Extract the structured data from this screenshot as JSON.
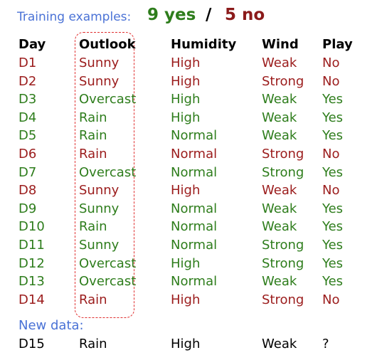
{
  "title": {
    "label": "Training examples:",
    "yes_count": "9 yes",
    "slash": "/",
    "no_count": "5 no"
  },
  "headers": [
    "Day",
    "Outlook",
    "Humidity",
    "Wind",
    "Play"
  ],
  "rows": [
    {
      "day": "D1",
      "outlook": "Sunny",
      "humidity": "High",
      "wind": "Weak",
      "play": "No"
    },
    {
      "day": "D2",
      "outlook": "Sunny",
      "humidity": "High",
      "wind": "Strong",
      "play": "No"
    },
    {
      "day": "D3",
      "outlook": "Overcast",
      "humidity": "High",
      "wind": "Weak",
      "play": "Yes"
    },
    {
      "day": "D4",
      "outlook": "Rain",
      "humidity": "High",
      "wind": "Weak",
      "play": "Yes"
    },
    {
      "day": "D5",
      "outlook": "Rain",
      "humidity": "Normal",
      "wind": "Weak",
      "play": "Yes"
    },
    {
      "day": "D6",
      "outlook": "Rain",
      "humidity": "Normal",
      "wind": "Strong",
      "play": "No"
    },
    {
      "day": "D7",
      "outlook": "Overcast",
      "humidity": "Normal",
      "wind": "Strong",
      "play": "Yes"
    },
    {
      "day": "D8",
      "outlook": "Sunny",
      "humidity": "High",
      "wind": "Weak",
      "play": "No"
    },
    {
      "day": "D9",
      "outlook": "Sunny",
      "humidity": "Normal",
      "wind": "Weak",
      "play": "Yes"
    },
    {
      "day": "D10",
      "outlook": "Rain",
      "humidity": "Normal",
      "wind": "Weak",
      "play": "Yes"
    },
    {
      "day": "D11",
      "outlook": "Sunny",
      "humidity": "Normal",
      "wind": "Strong",
      "play": "Yes"
    },
    {
      "day": "D12",
      "outlook": "Overcast",
      "humidity": "High",
      "wind": "Strong",
      "play": "Yes"
    },
    {
      "day": "D13",
      "outlook": "Overcast",
      "humidity": "Normal",
      "wind": "Weak",
      "play": "Yes"
    },
    {
      "day": "D14",
      "outlook": "Rain",
      "humidity": "High",
      "wind": "Strong",
      "play": "No"
    }
  ],
  "new_data": {
    "label": "New data:",
    "row": {
      "day": "D15",
      "outlook": "Rain",
      "humidity": "High",
      "wind": "Weak",
      "play": "?"
    }
  },
  "colors": {
    "yes": "#2e7d1c",
    "no": "#9b1c1c",
    "label_blue": "#4a72d6",
    "highlight_box": "#e03030"
  }
}
